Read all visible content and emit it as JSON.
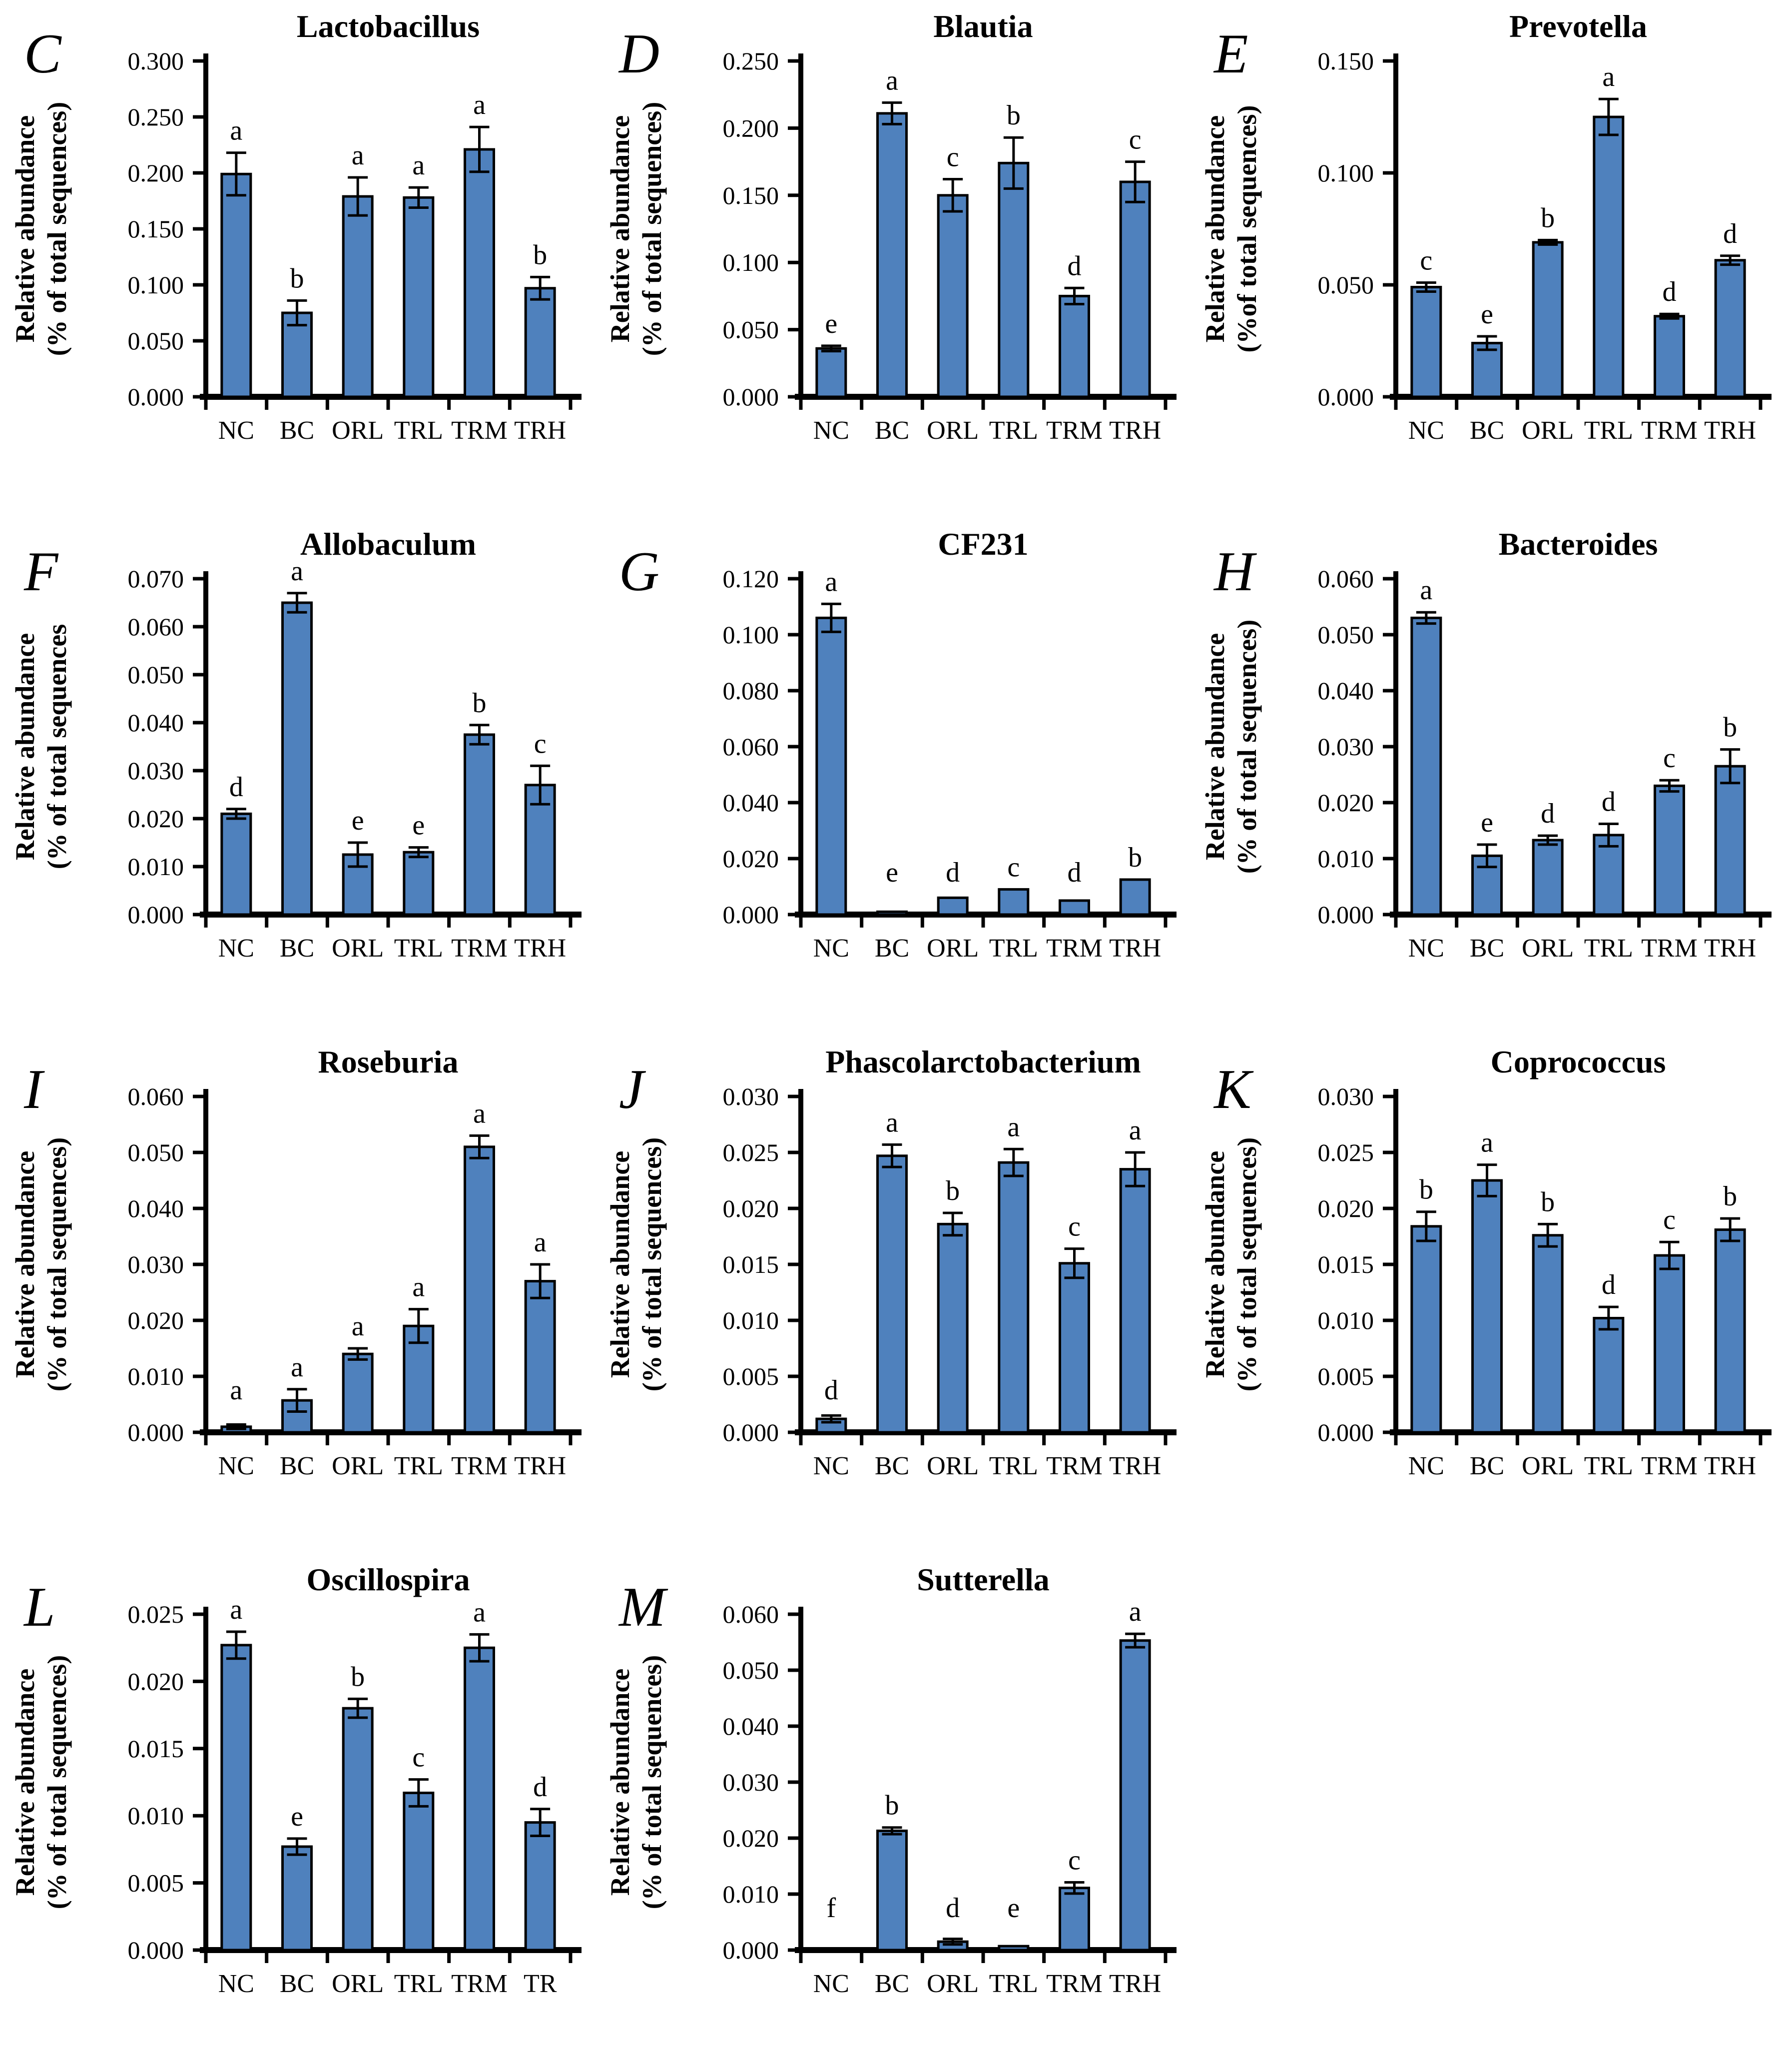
{
  "colors": {
    "bar_fill": "#4f81bd",
    "bar_edge": "#000000",
    "axis": "#000000",
    "text": "#000000",
    "background": "#ffffff"
  },
  "chart_data": [
    {
      "panel": "C",
      "type": "bar",
      "title": "Lactobacillus",
      "ylabel_lines": [
        "Relative abundance",
        "(% of total sequences)"
      ],
      "categories": [
        "NC",
        "BC",
        "ORL",
        "TRL",
        "TRM",
        "TRH"
      ],
      "values": [
        0.199,
        0.075,
        0.179,
        0.178,
        0.221,
        0.097
      ],
      "errors": [
        0.019,
        0.011,
        0.017,
        0.009,
        0.02,
        0.01
      ],
      "sig_letters": [
        "a",
        "b",
        "a",
        "a",
        "a",
        "b"
      ],
      "ylim": [
        0,
        0.3
      ],
      "yticks": [
        "0.000",
        "0.050",
        "0.100",
        "0.150",
        "0.200",
        "0.250",
        "0.300"
      ],
      "grid": false,
      "legend": "none"
    },
    {
      "panel": "D",
      "type": "bar",
      "title": "Blautia",
      "ylabel_lines": [
        "Relative abundance",
        "(% of total sequences)"
      ],
      "categories": [
        "NC",
        "BC",
        "ORL",
        "TRL",
        "TRM",
        "TRH"
      ],
      "values": [
        0.036,
        0.211,
        0.15,
        0.174,
        0.075,
        0.16
      ],
      "errors": [
        0.002,
        0.008,
        0.012,
        0.019,
        0.006,
        0.015
      ],
      "sig_letters": [
        "e",
        "a",
        "c",
        "b",
        "d",
        "c"
      ],
      "ylim": [
        0,
        0.25
      ],
      "yticks": [
        "0.000",
        "0.050",
        "0.100",
        "0.150",
        "0.200",
        "0.250"
      ],
      "grid": false,
      "legend": "none"
    },
    {
      "panel": "E",
      "type": "bar",
      "title": "Prevotella",
      "ylabel_lines": [
        "Relative abundance",
        "(%of total sequences)"
      ],
      "categories": [
        "NC",
        "BC",
        "ORL",
        "TRL",
        "TRM",
        "TRH"
      ],
      "values": [
        0.049,
        0.024,
        0.069,
        0.125,
        0.036,
        0.061
      ],
      "errors": [
        0.002,
        0.003,
        0.001,
        0.008,
        0.001,
        0.002
      ],
      "sig_letters": [
        "c",
        "e",
        "b",
        "a",
        "d",
        "d"
      ],
      "ylim": [
        0,
        0.15
      ],
      "yticks": [
        "0.000",
        "0.050",
        "0.100",
        "0.150"
      ],
      "grid": false,
      "legend": "none"
    },
    {
      "panel": "F",
      "type": "bar",
      "title": "Allobaculum",
      "ylabel_lines": [
        "Relative abundance",
        "(% of total sequences"
      ],
      "categories": [
        "NC",
        "BC",
        "ORL",
        "TRL",
        "TRM",
        "TRH"
      ],
      "values": [
        0.021,
        0.065,
        0.0125,
        0.013,
        0.0375,
        0.027
      ],
      "errors": [
        0.001,
        0.002,
        0.0025,
        0.001,
        0.002,
        0.004
      ],
      "sig_letters": [
        "d",
        "a",
        "e",
        "e",
        "b",
        "c"
      ],
      "ylim": [
        0,
        0.07
      ],
      "yticks": [
        "0.000",
        "0.010",
        "0.020",
        "0.030",
        "0.040",
        "0.050",
        "0.060",
        "0.070"
      ],
      "grid": false,
      "legend": "none"
    },
    {
      "panel": "G",
      "type": "bar",
      "title": "CF231",
      "ylabel_lines": null,
      "categories": [
        "NC",
        "BC",
        "ORL",
        "TRL",
        "TRM",
        "TRH"
      ],
      "values": [
        0.106,
        0.001,
        0.006,
        0.009,
        0.005,
        0.0125
      ],
      "errors": [
        0.005,
        0,
        0,
        0,
        0,
        0
      ],
      "sig_letters": [
        "a",
        "e",
        "d",
        "c",
        "d",
        "b"
      ],
      "ylim": [
        0,
        0.12
      ],
      "yticks": [
        "0.000",
        "0.020",
        "0.040",
        "0.060",
        "0.080",
        "0.100",
        "0.120"
      ],
      "grid": false,
      "legend": "none"
    },
    {
      "panel": "H",
      "type": "bar",
      "title": "Bacteroides",
      "ylabel_lines": [
        "Relative abundance",
        "(% of total sequences)"
      ],
      "categories": [
        "NC",
        "BC",
        "ORL",
        "TRL",
        "TRM",
        "TRH"
      ],
      "values": [
        0.053,
        0.0105,
        0.0133,
        0.0142,
        0.023,
        0.0265
      ],
      "errors": [
        0.001,
        0.002,
        0.0008,
        0.002,
        0.001,
        0.003
      ],
      "sig_letters": [
        "a",
        "e",
        "d",
        "d",
        "c",
        "b"
      ],
      "ylim": [
        0,
        0.06
      ],
      "yticks": [
        "0.000",
        "0.010",
        "0.020",
        "0.030",
        "0.040",
        "0.050",
        "0.060"
      ],
      "grid": false,
      "legend": "none"
    },
    {
      "panel": "I",
      "type": "bar",
      "title": "Roseburia",
      "ylabel_lines": [
        "Relative abundance",
        "(% of total sequences)"
      ],
      "categories": [
        "NC",
        "BC",
        "ORL",
        "TRL",
        "TRM",
        "TRH"
      ],
      "values": [
        0.001,
        0.0057,
        0.014,
        0.019,
        0.051,
        0.027
      ],
      "errors": [
        0.0004,
        0.002,
        0.001,
        0.003,
        0.002,
        0.003
      ],
      "sig_letters": [
        "a",
        "a",
        "a",
        "a",
        "a",
        "a"
      ],
      "ylim": [
        0,
        0.06
      ],
      "yticks": [
        "0.000",
        "0.010",
        "0.020",
        "0.030",
        "0.040",
        "0.050",
        "0.060"
      ],
      "grid": false,
      "legend": "none"
    },
    {
      "panel": "J",
      "type": "bar",
      "title": "Phascolarctobacterium",
      "ylabel_lines": [
        "Relative abundance",
        "(% of total sequences)"
      ],
      "categories": [
        "NC",
        "BC",
        "ORL",
        "TRL",
        "TRM",
        "TRH"
      ],
      "values": [
        0.0012,
        0.0247,
        0.0186,
        0.0241,
        0.0151,
        0.0235
      ],
      "errors": [
        0.0003,
        0.001,
        0.001,
        0.0012,
        0.0013,
        0.0015
      ],
      "sig_letters": [
        "d",
        "a",
        "b",
        "a",
        "c",
        "a"
      ],
      "ylim": [
        0,
        0.03
      ],
      "yticks": [
        "0.000",
        "0.005",
        "0.010",
        "0.015",
        "0.020",
        "0.025",
        "0.030"
      ],
      "grid": false,
      "legend": "none"
    },
    {
      "panel": "K",
      "type": "bar",
      "title": "Coprococcus",
      "ylabel_lines": [
        "Relative abundance",
        "(% of total sequences)"
      ],
      "categories": [
        "NC",
        "BC",
        "ORL",
        "TRL",
        "TRM",
        "TRH"
      ],
      "values": [
        0.0184,
        0.0225,
        0.0176,
        0.0102,
        0.0158,
        0.0181
      ],
      "errors": [
        0.0013,
        0.0014,
        0.001,
        0.001,
        0.0012,
        0.001
      ],
      "sig_letters": [
        "b",
        "a",
        "b",
        "d",
        "c",
        "b"
      ],
      "ylim": [
        0,
        0.03
      ],
      "yticks": [
        "0.000",
        "0.005",
        "0.010",
        "0.015",
        "0.020",
        "0.025",
        "0.030"
      ],
      "grid": false,
      "legend": "none"
    },
    {
      "panel": "L",
      "type": "bar",
      "title": "Oscillospira",
      "ylabel_lines": [
        "Relative abundance",
        "(% of total sequences)"
      ],
      "categories": [
        "NC",
        "BC",
        "ORL",
        "TRL",
        "TRM",
        "TR"
      ],
      "values": [
        0.0227,
        0.0077,
        0.018,
        0.0117,
        0.0225,
        0.0095
      ],
      "errors": [
        0.001,
        0.0006,
        0.0007,
        0.001,
        0.001,
        0.001
      ],
      "sig_letters": [
        "a",
        "e",
        "b",
        "c",
        "a",
        "d"
      ],
      "ylim": [
        0,
        0.025
      ],
      "yticks": [
        "0.000",
        "0.005",
        "0.010",
        "0.015",
        "0.020",
        "0.025"
      ],
      "grid": false,
      "legend": "none"
    },
    {
      "panel": "M",
      "type": "bar",
      "title": "Sutterella",
      "ylabel_lines": [
        "Relative abundance",
        "(% of total sequences)"
      ],
      "categories": [
        "NC",
        "BC",
        "ORL",
        "TRL",
        "TRM",
        "TRH"
      ],
      "values": [
        0.0003,
        0.0213,
        0.0015,
        0.0007,
        0.0111,
        0.0553
      ],
      "errors": [
        0,
        0.0006,
        0.0005,
        0,
        0.001,
        0.0012
      ],
      "sig_letters": [
        "f",
        "b",
        "d",
        "e",
        "c",
        "a"
      ],
      "ylim": [
        0,
        0.06
      ],
      "yticks": [
        "0.000",
        "0.010",
        "0.020",
        "0.030",
        "0.040",
        "0.050",
        "0.060"
      ],
      "grid": false,
      "legend": "none"
    }
  ]
}
